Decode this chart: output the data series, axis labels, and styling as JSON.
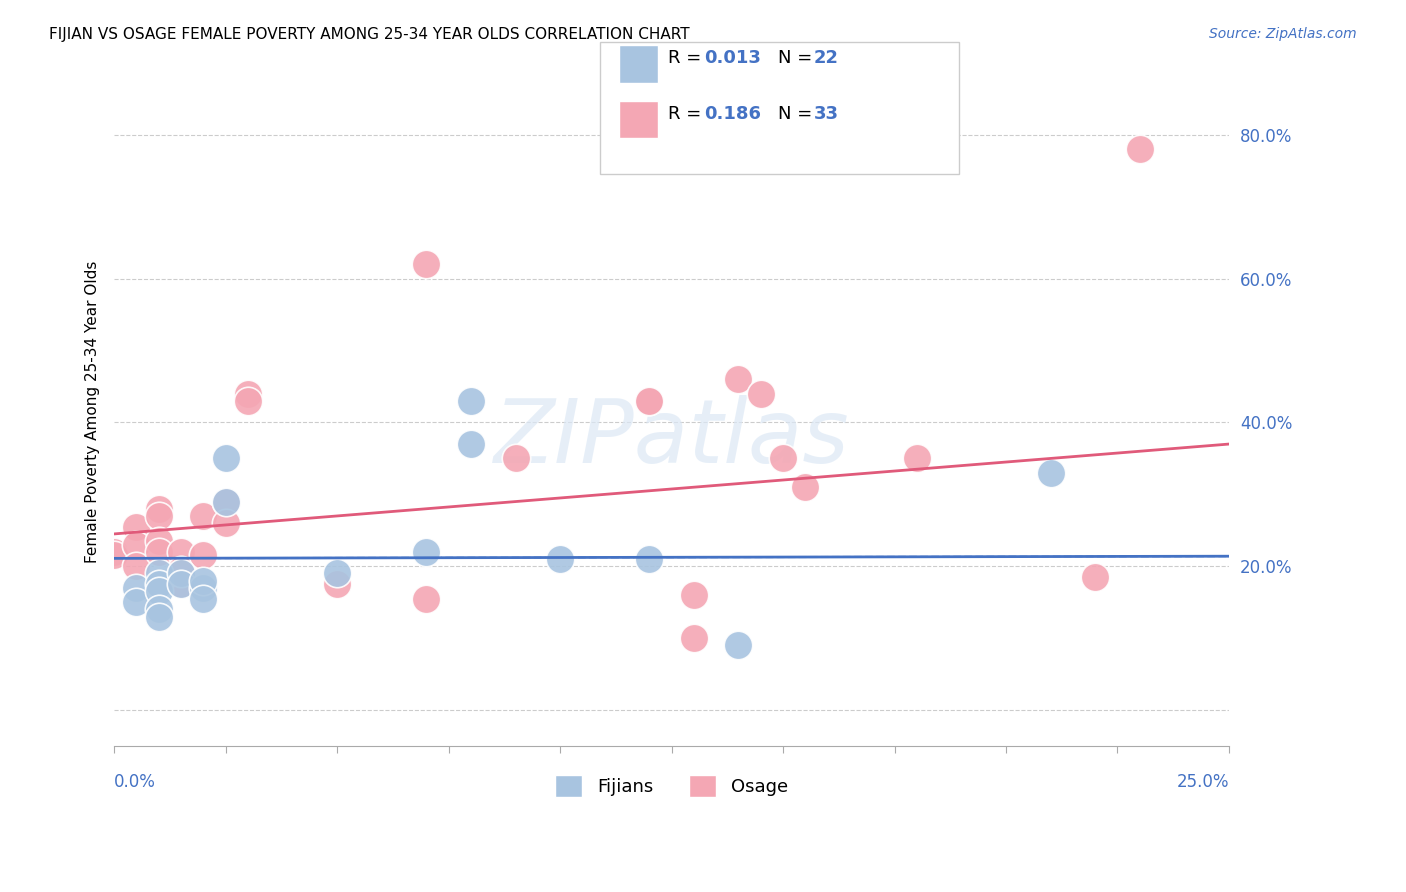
{
  "title": "FIJIAN VS OSAGE FEMALE POVERTY AMONG 25-34 YEAR OLDS CORRELATION CHART",
  "source": "Source: ZipAtlas.com",
  "ylabel": "Female Poverty Among 25-34 Year Olds",
  "xlim": [
    0.0,
    0.25
  ],
  "ylim": [
    -0.05,
    0.88
  ],
  "fijians_R": "0.013",
  "fijians_N": "22",
  "osage_R": "0.186",
  "osage_N": "33",
  "fijian_color": "#a8c4e0",
  "osage_color": "#f4a7b4",
  "fijian_line_color": "#4472c4",
  "osage_line_color": "#e05a7a",
  "fijians_x": [
    0.005,
    0.005,
    0.01,
    0.01,
    0.01,
    0.01,
    0.01,
    0.015,
    0.015,
    0.02,
    0.02,
    0.02,
    0.025,
    0.025,
    0.05,
    0.07,
    0.08,
    0.08,
    0.1,
    0.12,
    0.14,
    0.21
  ],
  "fijians_y": [
    0.17,
    0.15,
    0.19,
    0.175,
    0.165,
    0.14,
    0.13,
    0.19,
    0.175,
    0.17,
    0.18,
    0.155,
    0.29,
    0.35,
    0.19,
    0.22,
    0.43,
    0.37,
    0.21,
    0.21,
    0.09,
    0.33
  ],
  "osage_x": [
    0.0,
    0.0,
    0.005,
    0.005,
    0.005,
    0.01,
    0.01,
    0.01,
    0.01,
    0.015,
    0.015,
    0.015,
    0.02,
    0.02,
    0.025,
    0.025,
    0.03,
    0.03,
    0.05,
    0.07,
    0.07,
    0.09,
    0.12,
    0.12,
    0.13,
    0.13,
    0.14,
    0.145,
    0.15,
    0.155,
    0.18,
    0.22,
    0.23
  ],
  "osage_y": [
    0.22,
    0.215,
    0.255,
    0.23,
    0.2,
    0.28,
    0.27,
    0.235,
    0.22,
    0.22,
    0.195,
    0.175,
    0.27,
    0.215,
    0.29,
    0.26,
    0.44,
    0.43,
    0.175,
    0.155,
    0.62,
    0.35,
    0.43,
    0.43,
    0.16,
    0.1,
    0.46,
    0.44,
    0.35,
    0.31,
    0.35,
    0.185,
    0.78
  ],
  "fijians_trend_x": [
    0.0,
    0.25
  ],
  "fijians_trend_y": [
    0.211,
    0.214
  ],
  "osage_trend_x": [
    0.0,
    0.25
  ],
  "osage_trend_y": [
    0.245,
    0.37
  ],
  "yticks": [
    0.0,
    0.2,
    0.4,
    0.6,
    0.8
  ],
  "ytick_labels": [
    "",
    "20.0%",
    "40.0%",
    "60.0%",
    "80.0%"
  ],
  "xticks": [
    0.0,
    0.025,
    0.05,
    0.075,
    0.1,
    0.125,
    0.15,
    0.175,
    0.2,
    0.225,
    0.25
  ]
}
